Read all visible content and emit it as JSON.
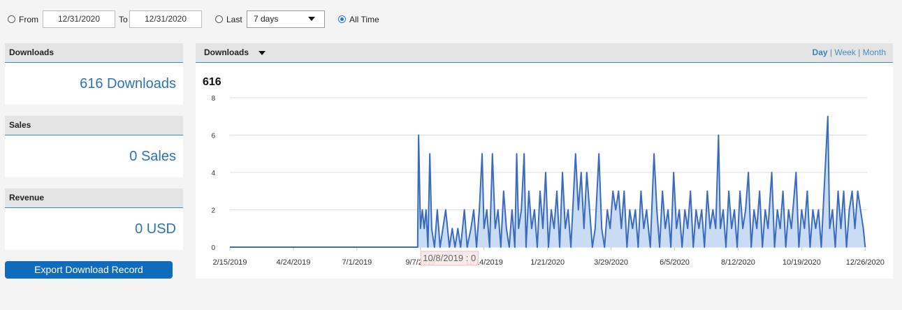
{
  "filters": {
    "from_label": "From",
    "from_date": "12/31/2020",
    "to_label": "To",
    "to_date": "12/31/2020",
    "last_label": "Last",
    "last_select": "7 days",
    "all_time_label": "All Time"
  },
  "summary": [
    {
      "title": "Downloads",
      "value": "616 Downloads"
    },
    {
      "title": "Sales",
      "value": "0 Sales"
    },
    {
      "title": "Revenue",
      "value": "0 USD"
    }
  ],
  "export_button": "Export Download Record",
  "chart_header": {
    "metric": "Downloads",
    "day": "Day",
    "separator1": "|",
    "week": "Week",
    "separator2": "|",
    "month": "Month"
  },
  "chart_data": {
    "type": "line",
    "title": "616",
    "annotation": "10/8/2019 : 0",
    "xlim": [
      "2/15/2019",
      "12/31/2020"
    ],
    "xticks": [
      "2/15/2019",
      "4/24/2019",
      "7/1/2019",
      "9/7/2019",
      "11/14/2019",
      "1/21/2020",
      "3/29/2020",
      "6/5/2020",
      "8/12/2020",
      "10/19/2020",
      "12/26/2020"
    ],
    "ylim": [
      0,
      8
    ],
    "yticks": [
      0,
      2,
      4,
      6,
      8
    ],
    "grid": true,
    "x": [
      "2/15/2019",
      "9/4/2019",
      "9/5/2019",
      "9/7/2019",
      "9/9/2019",
      "9/11/2019",
      "9/13/2019",
      "9/15/2019",
      "9/17/2019",
      "9/19/2019",
      "9/22/2019",
      "9/25/2019",
      "9/28/2019",
      "10/1/2019",
      "10/4/2019",
      "10/8/2019",
      "10/11/2019",
      "10/14/2019",
      "10/17/2019",
      "10/20/2019",
      "10/24/2019",
      "10/27/2019",
      "10/31/2019",
      "11/3/2019",
      "11/6/2019",
      "11/9/2019",
      "11/12/2019",
      "11/14/2019",
      "11/17/2019",
      "11/20/2019",
      "11/23/2019",
      "11/26/2019",
      "11/29/2019",
      "12/2/2019",
      "12/5/2019",
      "12/8/2019",
      "12/11/2019",
      "12/14/2019",
      "12/17/2019",
      "12/19/2019",
      "12/21/2019",
      "12/24/2019",
      "12/27/2019",
      "12/29/2019",
      "1/1/2020",
      "1/4/2020",
      "1/7/2020",
      "1/10/2020",
      "1/13/2020",
      "1/16/2020",
      "1/19/2020",
      "1/22/2020",
      "1/25/2020",
      "1/28/2020",
      "1/31/2020",
      "2/3/2020",
      "2/6/2020",
      "2/9/2020",
      "2/12/2020",
      "2/15/2020",
      "2/18/2020",
      "2/20/2020",
      "2/23/2020",
      "2/26/2020",
      "2/29/2020",
      "3/3/2020",
      "3/6/2020",
      "3/9/2020",
      "3/12/2020",
      "3/16/2020",
      "3/19/2020",
      "3/22/2020",
      "3/25/2020",
      "3/28/2020",
      "3/31/2020",
      "4/3/2020",
      "4/6/2020",
      "4/9/2020",
      "4/12/2020",
      "4/15/2020",
      "4/18/2020",
      "4/21/2020",
      "4/24/2020",
      "4/27/2020",
      "4/30/2020",
      "5/3/2020",
      "5/6/2020",
      "5/10/2020",
      "5/14/2020",
      "5/17/2020",
      "5/20/2020",
      "5/23/2020",
      "5/26/2020",
      "5/29/2020",
      "6/1/2020",
      "6/4/2020",
      "6/7/2020",
      "6/10/2020",
      "6/13/2020",
      "6/16/2020",
      "6/19/2020",
      "6/22/2020",
      "6/25/2020",
      "6/28/2020",
      "7/1/2020",
      "7/4/2020",
      "7/7/2020",
      "7/10/2020",
      "7/13/2020",
      "7/16/2020",
      "7/19/2020",
      "7/22/2020",
      "7/24/2020",
      "7/27/2020",
      "7/30/2020",
      "8/2/2020",
      "8/5/2020",
      "8/8/2020",
      "8/11/2020",
      "8/14/2020",
      "8/17/2020",
      "8/20/2020",
      "8/23/2020",
      "8/26/2020",
      "8/29/2020",
      "9/1/2020",
      "9/4/2020",
      "9/7/2020",
      "9/10/2020",
      "9/13/2020",
      "9/17/2020",
      "9/20/2020",
      "9/23/2020",
      "9/26/2020",
      "9/29/2020",
      "10/2/2020",
      "10/5/2020",
      "10/8/2020",
      "10/13/2020",
      "10/16/2020",
      "10/19/2020",
      "10/22/2020",
      "10/25/2020",
      "10/28/2020",
      "10/31/2020",
      "11/3/2020",
      "11/6/2020",
      "11/9/2020",
      "11/12/2020",
      "11/16/2020",
      "11/18/2020",
      "11/21/2020",
      "11/24/2020",
      "11/27/2020",
      "11/30/2020",
      "12/3/2020",
      "12/6/2020",
      "12/9/2020",
      "12/12/2020",
      "12/15/2020",
      "12/18/2020",
      "12/21/2020",
      "12/24/2020",
      "12/26/2020"
    ],
    "series": [
      {
        "name": "Downloads",
        "color": "#3a6bbf",
        "fill": "#c9dcf3",
        "values": [
          0,
          0,
          6,
          1,
          2,
          1,
          2,
          0,
          5,
          1,
          0,
          2,
          0,
          1,
          2,
          0,
          1,
          0,
          1,
          0,
          2,
          0,
          1,
          2,
          0,
          2,
          5,
          1,
          2,
          0,
          5,
          1,
          2,
          0,
          3,
          1,
          0,
          2,
          0,
          5,
          1,
          2,
          5,
          0,
          3,
          1,
          2,
          0,
          3,
          1,
          4,
          0,
          2,
          1,
          3,
          0,
          4,
          1,
          2,
          0,
          3,
          5,
          2,
          4,
          1,
          4,
          2,
          0,
          1,
          5,
          1,
          0,
          2,
          1,
          3,
          2,
          3,
          1,
          3,
          0,
          2,
          1,
          2,
          0,
          3,
          1,
          2,
          0,
          5,
          2,
          0,
          3,
          1,
          2,
          0,
          4,
          1,
          2,
          0,
          2,
          1,
          3,
          0,
          2,
          1,
          2,
          0,
          3,
          1,
          2,
          1,
          6,
          1,
          2,
          0,
          3,
          1,
          2,
          0,
          3,
          1,
          2,
          4,
          0,
          2,
          1,
          3,
          0,
          2,
          1,
          4,
          0,
          2,
          1,
          3,
          0,
          2,
          1,
          4,
          0,
          2,
          1,
          3,
          0,
          2,
          1,
          2,
          0,
          3,
          7,
          1,
          2,
          0,
          3,
          1,
          3,
          0,
          2,
          3,
          1,
          3,
          2,
          1,
          0
        ]
      }
    ]
  }
}
